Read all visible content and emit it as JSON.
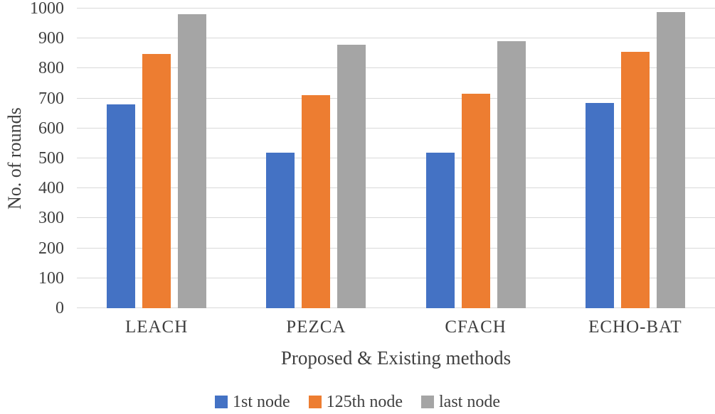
{
  "chart_data": {
    "type": "bar",
    "title": "",
    "xlabel": "Proposed & Existing methods",
    "ylabel": "No. of rounds",
    "categories": [
      "LEACH",
      "PEZCA",
      "CFACH",
      "ECHO-BAT"
    ],
    "series": [
      {
        "name": "1st node",
        "color": "#4472C4",
        "values": [
          680,
          520,
          520,
          685
        ]
      },
      {
        "name": "125th node",
        "color": "#ED7D31",
        "values": [
          848,
          710,
          715,
          855
        ]
      },
      {
        "name": "last node",
        "color": "#A5A5A5",
        "values": [
          980,
          878,
          890,
          988
        ]
      }
    ],
    "ylim": [
      0,
      1000
    ],
    "ytick_step": 100,
    "grid": "horizontal",
    "legend_position": "bottom",
    "colors": {
      "gridline": "#D9D9D9",
      "axis_text": "#3F3F3F",
      "background": "#FFFFFF"
    }
  }
}
